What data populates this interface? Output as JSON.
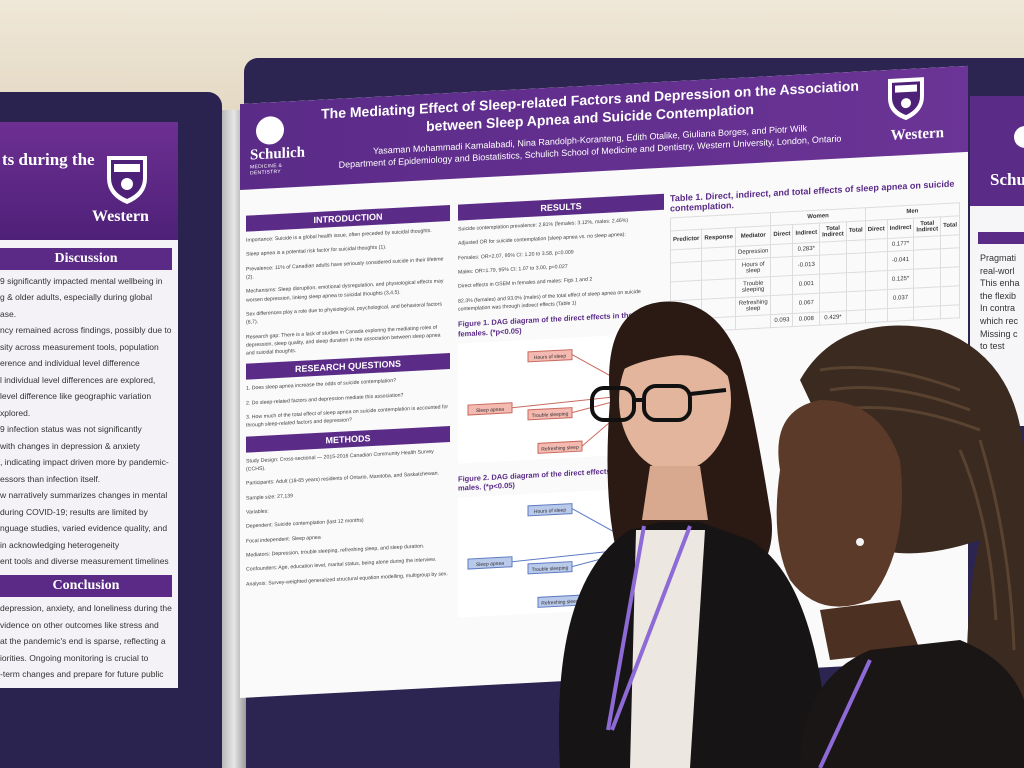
{
  "left_poster": {
    "title_fragment": "ts during the",
    "university": "Western",
    "discussion_heading": "Discussion",
    "discussion_lines": [
      "9 significantly impacted mental wellbeing in",
      "g & older adults, especially during global",
      "ase.",
      "ncy remained across findings, possibly due to",
      "sity across measurement tools, population",
      "erence and individual level difference",
      "l individual level differences are explored,",
      "level difference like geographic variation",
      "xplored.",
      "9 infection status was not significantly",
      "with changes in depression & anxiety",
      ", indicating impact driven more by pandemic-",
      "essors than infection itself.",
      "w narratively summarizes changes in mental",
      "during COVID-19; results are limited by",
      "nguage studies, varied evidence quality, and",
      "in acknowledging heterogeneity",
      "ent tools and diverse measurement timelines"
    ],
    "conclusion_heading": "Conclusion",
    "conclusion_lines": [
      "depression, anxiety, and loneliness during the",
      "vidence on other outcomes like stress and",
      "at the pandemic's end is sparse, reflecting a",
      "iorities. Ongoing monitoring is crucial to",
      "-term changes and prepare for future public",
      "udies on population-level variations limits",
      "ng of broader mental health influences."
    ]
  },
  "main_poster": {
    "logo_left": "Schulich",
    "logo_left_sub": "MEDICINE & DENTISTRY",
    "title": "The Mediating Effect of Sleep-related Factors and Depression on the Association between Sleep Apnea and Suicide Contemplation",
    "authors": "Yasaman Mohammadi Kamalabadi, Nina Randolph-Koranteng, Edith Otalike, Giuliana Borges, and Piotr Wilk",
    "affiliation": "Department of Epidemiology and Biostatistics, Schulich School of Medicine and Dentistry, Western University, London, Ontario",
    "university": "Western",
    "introduction": {
      "heading": "INTRODUCTION",
      "items": [
        "Importance: Suicide is a global health issue, often preceded by suicidal thoughts.",
        "Sleep apnea is a potential risk factor for suicidal thoughts (1).",
        "Prevalence: 11% of Canadian adults have seriously considered suicide in their lifetime (2).",
        "Mechanisms: Sleep disruption, emotional dysregulation, and physiological effects may worsen depression, linking sleep apnea to suicidal thoughts (3,4,5).",
        "Sex differences play a role due to physiological, psychological, and behavioral factors (6,7).",
        "Research gap: There is a lack of studies in Canada exploring the mediating roles of depression, sleep quality, and sleep duration in the association between sleep apnea and suicidal thoughts."
      ]
    },
    "research_questions": {
      "heading": "RESEARCH QUESTIONS",
      "items": [
        "1. Does sleep apnea increase the odds of suicide contemplation?",
        "2. Do sleep-related factors and depression mediate this association?",
        "3. How much of the total effect of sleep apnea on suicide contemplation is accounted for through sleep-related factors and depression?"
      ]
    },
    "methods": {
      "heading": "METHODS",
      "items": [
        "Study Design: Cross-sectional — 2015-2016 Canadian Community Health Survey (CCHS).",
        "Participants: Adult (18-65 years) residents of Ontario, Manitoba, and Saskatchewan.",
        "Sample size: 27,139",
        "Variables:",
        "Dependent: Suicide contemplation (last 12 months)",
        "Focal independent: Sleep apnea",
        "Mediators: Depression, trouble sleeping, refreshing sleep, and sleep duration.",
        "Confounders: Age, education level, marital status, being alone during the interview.",
        "Analysis: Survey-weighted generalized structural equation modelling, multigroup by sex."
      ]
    },
    "results": {
      "heading": "RESULTS",
      "items": [
        "Suicide contemplation prevalence: 2.81% (females: 3.12%, males: 2.46%)",
        "Adjusted OR for suicide contemplation (sleep apnea vs. no sleep apnea):",
        "Females: OR=2.07, 95% CI: 1.20 to 3.58, p=0.009",
        "Males: OR=1.79, 95% CI: 1.07 to 3.00, p=0.027",
        "Direct effects in GSEM in females and males: Figs 1 and 2",
        "82.3% (females) and 93.0% (males) of the total effect of sleep apnea on suicide contemplation was through indirect effects (Table 1)"
      ],
      "figure1_caption": "Figure 1. DAG diagram of the direct effects in the among females. (*p<0.05)",
      "figure2_caption": "Figure 2. DAG diagram of the direct effects in the among males. (*p<0.05)",
      "fig_nodes": [
        "Hours of sleep",
        "Sleep apnea",
        "Trouble sleeping",
        "Refreshing sleep"
      ]
    },
    "table1": {
      "caption": "Table 1. Direct, indirect, and total effects of sleep apnea on suicide contemplation.",
      "group_headers": [
        "Women",
        "Men"
      ],
      "headers": [
        "Predictor",
        "Response",
        "Mediator",
        "Direct",
        "Indirect",
        "Total Indirect",
        "Total",
        "Direct",
        "Indirect",
        "Total Indirect",
        "Total"
      ],
      "rows": [
        [
          "",
          "",
          "Depression",
          "",
          "0.283*",
          "",
          "",
          "",
          "0.177*",
          "",
          ""
        ],
        [
          "",
          "",
          "Hours of sleep",
          "",
          "-0.013",
          "",
          "",
          "",
          "-0.041",
          "",
          ""
        ],
        [
          "",
          "",
          "Trouble sleeping",
          "",
          "0.001",
          "",
          "",
          "",
          "0.125*",
          "",
          ""
        ],
        [
          "",
          "",
          "Refreshing sleep",
          "",
          "0.067",
          "",
          "",
          "",
          "0.037",
          "",
          ""
        ],
        [
          "",
          "",
          "",
          "0.093",
          "0.008",
          "0.429*",
          "",
          "",
          "",
          "",
          ""
        ]
      ]
    }
  },
  "right_poster": {
    "logo": "Schulich",
    "bullets": [
      "Pragmati",
      "real-worl",
      "This enha",
      "the flexib",
      "In contra",
      "which rec",
      "Missing c",
      "to test"
    ]
  },
  "colors": {
    "purple": "#5b2b88",
    "board": "#2c2552",
    "poster_bg": "#fafafa"
  }
}
